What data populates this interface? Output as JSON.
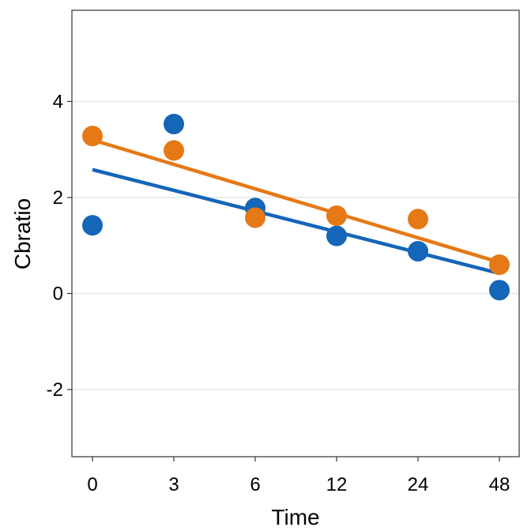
{
  "chart_data": {
    "type": "scatter",
    "xlabel": "Time",
    "ylabel": "Cbratio",
    "x_categories": [
      "0",
      "3",
      "6",
      "12",
      "24",
      "48"
    ],
    "ylim": [
      -3.4,
      5.9
    ],
    "yticks": [
      -2,
      0,
      2,
      4
    ],
    "ytick_labels": [
      "-2",
      "0",
      "2",
      "4"
    ],
    "grid": "horizontal major",
    "legend": "none",
    "series": [
      {
        "color": "#1565b8",
        "points": [
          {
            "x": "0",
            "y": 1.42
          },
          {
            "x": "3",
            "y": 3.53
          },
          {
            "x": "6",
            "y": 1.78
          },
          {
            "x": "12",
            "y": 1.2
          },
          {
            "x": "24",
            "y": 0.88
          },
          {
            "x": "48",
            "y": 0.07
          }
        ],
        "trend": {
          "start": 2.58,
          "end": 0.42
        }
      },
      {
        "color": "#e57916",
        "points": [
          {
            "x": "0",
            "y": 3.28
          },
          {
            "x": "3",
            "y": 2.98
          },
          {
            "x": "6",
            "y": 1.58
          },
          {
            "x": "12",
            "y": 1.62
          },
          {
            "x": "24",
            "y": 1.55
          },
          {
            "x": "48",
            "y": 0.6
          }
        ],
        "trend": {
          "start": 3.2,
          "end": 0.65
        }
      }
    ]
  }
}
